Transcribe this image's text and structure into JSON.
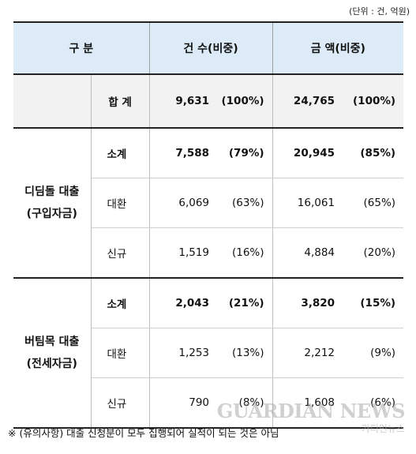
{
  "unit_note": "(단위 : 건, 억원)",
  "header": {
    "category": "구 분",
    "count": "건 수(비중)",
    "amount": "금 액(비중)"
  },
  "total": {
    "label": "합 계",
    "count": "9,631",
    "count_pct": "(100%)",
    "amount": "24,765",
    "amount_pct": "(100%)"
  },
  "groups": [
    {
      "title_line1": "디딤돌 대출",
      "title_line2": "(구입자금)",
      "rows": [
        {
          "label": "소계",
          "count": "7,588",
          "count_pct": "(79%)",
          "amount": "20,945",
          "amount_pct": "(85%)"
        },
        {
          "label": "대환",
          "count": "6,069",
          "count_pct": "(63%)",
          "amount": "16,061",
          "amount_pct": "(65%)"
        },
        {
          "label": "신규",
          "count": "1,519",
          "count_pct": "(16%)",
          "amount": "4,884",
          "amount_pct": "(20%)"
        }
      ]
    },
    {
      "title_line1": "버팀목 대출",
      "title_line2": "(전세자금)",
      "rows": [
        {
          "label": "소계",
          "count": "2,043",
          "count_pct": "(21%)",
          "amount": "3,820",
          "amount_pct": "(15%)"
        },
        {
          "label": "대환",
          "count": "1,253",
          "count_pct": "(13%)",
          "amount": "2,212",
          "amount_pct": "(9%)"
        },
        {
          "label": "신규",
          "count": "790",
          "count_pct": "(8%)",
          "amount": "1,608",
          "amount_pct": "(6%)"
        }
      ]
    }
  ],
  "footnote": "※ (유의사항) 대출 신청분이 모두 집행되어 실적이 되는 것은 아님",
  "watermark": {
    "main": "GUARDIAN NEWS",
    "sub": "가디언뉴스"
  }
}
